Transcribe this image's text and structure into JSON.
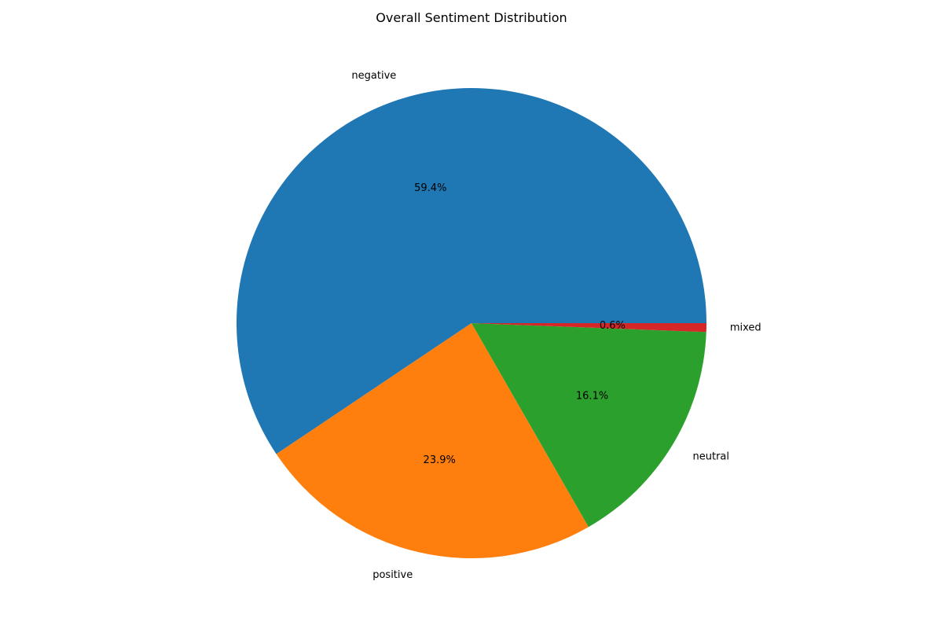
{
  "chart_data": {
    "type": "pie",
    "title": "Overall Sentiment Distribution",
    "slices": [
      {
        "label": "negative",
        "value": 59.4,
        "pct_label": "59.4%",
        "color": "#1f77b4"
      },
      {
        "label": "positive",
        "value": 23.9,
        "pct_label": "23.9%",
        "color": "#ff7f0e"
      },
      {
        "label": "neutral",
        "value": 16.1,
        "pct_label": "16.1%",
        "color": "#2ca02c"
      },
      {
        "label": "mixed",
        "value": 0.6,
        "pct_label": "0.6%",
        "color": "#d62728"
      }
    ],
    "start_angle_deg": 0,
    "direction": "counterclockwise"
  }
}
